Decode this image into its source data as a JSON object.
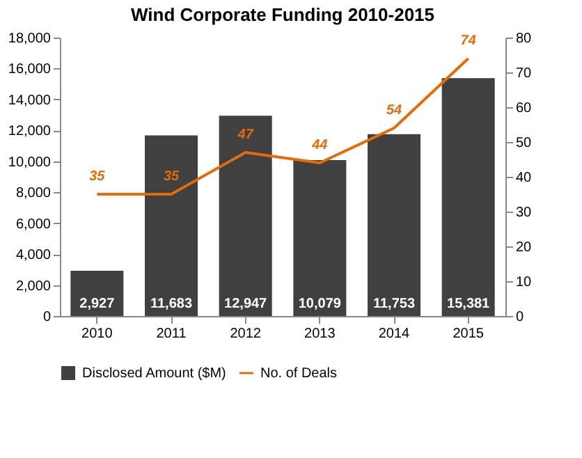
{
  "chart_data": {
    "type": "bar",
    "title": "Wind Corporate Funding 2010-2015",
    "categories": [
      "2010",
      "2011",
      "2012",
      "2013",
      "2014",
      "2015"
    ],
    "series": [
      {
        "name": "Disclosed Amount ($M)",
        "color": "#404040",
        "values": [
          2927,
          11683,
          12947,
          10079,
          11753,
          15381
        ],
        "value_labels": [
          "2,927",
          "11,683",
          "12,947",
          "10,079",
          "11,753",
          "15,381"
        ]
      },
      {
        "name": "No. of Deals",
        "type": "line",
        "axis": "y2",
        "color": "#e36c0a",
        "values": [
          35,
          35,
          47,
          44,
          54,
          74
        ],
        "value_labels": [
          "35",
          "35",
          "47",
          "44",
          "54",
          "74"
        ]
      }
    ],
    "ylim": [
      0,
      18000
    ],
    "yticks": [
      0,
      {
        "value": 2000,
        "label": "2,000"
      },
      {
        "value": 4000,
        "label": "4,000"
      },
      {
        "value": 6000,
        "label": "6,000"
      },
      {
        "value": 8000,
        "label": "8,000"
      },
      {
        "value": 10000,
        "label": "10,000"
      },
      {
        "value": 12000,
        "label": "12,000"
      },
      {
        "value": 14000,
        "label": "14,000"
      },
      {
        "value": 16000,
        "label": "16,000"
      },
      {
        "value": 18000,
        "label": "18,000"
      }
    ],
    "y2lim": [
      0,
      80
    ],
    "y2ticks": [
      0,
      10,
      20,
      30,
      40,
      50,
      60,
      70,
      80
    ],
    "legend": "bottom",
    "grid": false,
    "marker": "none"
  }
}
